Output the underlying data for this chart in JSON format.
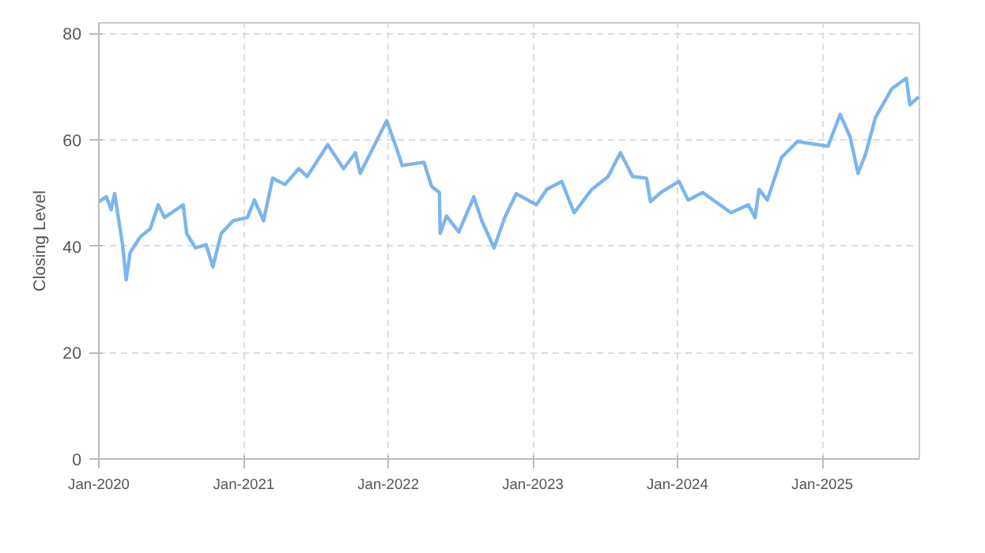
{
  "chart_data": {
    "type": "line",
    "ylabel": "Closing Level",
    "grid": true,
    "marker": "none",
    "line_style": "solid",
    "xlim": [
      "2020-01-01",
      "2025-09-03"
    ],
    "xticks": [
      {
        "value": "2020-01-01",
        "label": "Jan-2020"
      },
      {
        "value": "2021-01-01",
        "label": "Jan-2021"
      },
      {
        "value": "2022-01-01",
        "label": "Jan-2022"
      },
      {
        "value": "2023-01-01",
        "label": "Jan-2023"
      },
      {
        "value": "2024-01-01",
        "label": "Jan-2024"
      },
      {
        "value": "2025-01-01",
        "label": "Jan-2025"
      }
    ],
    "ylim": [
      0,
      82
    ],
    "yticks": [
      0,
      20,
      40,
      60,
      80
    ],
    "series": [
      {
        "color": "#7cb5ec",
        "x": [
          "2020-01-01",
          "2020-01-20",
          "2020-02-01",
          "2020-02-10",
          "2020-03-01",
          "2020-03-10",
          "2020-03-20",
          "2020-04-15",
          "2020-05-10",
          "2020-05-30",
          "2020-06-15",
          "2020-08-01",
          "2020-08-10",
          "2020-09-01",
          "2020-09-28",
          "2020-10-15",
          "2020-11-05",
          "2020-12-05",
          "2021-01-10",
          "2021-01-28",
          "2021-02-20",
          "2021-03-15",
          "2021-04-15",
          "2021-05-20",
          "2021-06-10",
          "2021-08-01",
          "2021-09-10",
          "2021-10-10",
          "2021-10-22",
          "2021-12-28",
          "2022-01-20",
          "2022-02-05",
          "2022-04-01",
          "2022-04-20",
          "2022-05-10",
          "2022-05-12",
          "2022-05-28",
          "2022-06-28",
          "2022-08-05",
          "2022-08-25",
          "2022-09-25",
          "2022-10-22",
          "2022-11-20",
          "2023-01-10",
          "2023-02-05",
          "2023-03-15",
          "2023-04-15",
          "2023-05-30",
          "2023-07-10",
          "2023-08-10",
          "2023-09-10",
          "2023-10-15",
          "2023-10-25",
          "2023-11-20",
          "2024-01-05",
          "2024-01-28",
          "2024-03-05",
          "2024-05-15",
          "2024-06-28",
          "2024-07-15",
          "2024-07-25",
          "2024-08-15",
          "2024-09-20",
          "2024-10-30",
          "2025-01-15",
          "2025-02-15",
          "2025-03-12",
          "2025-04-01",
          "2025-04-20",
          "2025-05-15",
          "2025-06-25",
          "2025-08-01",
          "2025-08-10",
          "2025-09-01"
        ],
        "values": [
          48.4,
          49.3,
          46.9,
          49.9,
          40.3,
          33.7,
          38.8,
          41.8,
          43.3,
          47.8,
          45.4,
          47.8,
          42.4,
          39.7,
          40.3,
          36.1,
          42.4,
          44.8,
          45.4,
          48.7,
          44.8,
          52.8,
          51.6,
          54.6,
          53.1,
          59.1,
          54.6,
          57.6,
          53.7,
          63.6,
          58.8,
          55.2,
          55.8,
          51.3,
          50.1,
          42.4,
          45.7,
          42.7,
          49.3,
          44.8,
          39.7,
          45.4,
          49.9,
          47.8,
          50.7,
          52.2,
          46.3,
          50.7,
          53.1,
          57.6,
          53.1,
          52.8,
          48.4,
          50.1,
          52.2,
          48.7,
          50.1,
          46.3,
          47.8,
          45.4,
          50.7,
          48.7,
          56.7,
          59.7,
          58.8,
          64.8,
          60.6,
          53.7,
          57.3,
          64.2,
          69.6,
          71.6,
          66.6,
          68.1
        ]
      }
    ]
  }
}
